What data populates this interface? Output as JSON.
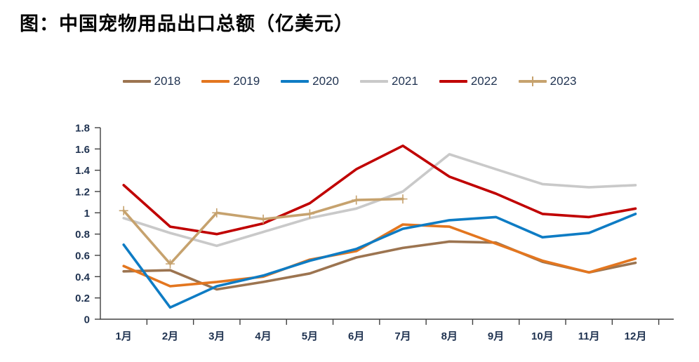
{
  "title": "图：中国宠物用品出口总额（亿美元）",
  "chart_data": {
    "type": "line",
    "title": "中国宠物用品出口总额（亿美元）",
    "xlabel": "",
    "ylabel": "",
    "categories": [
      "1月",
      "2月",
      "3月",
      "4月",
      "5月",
      "6月",
      "7月",
      "8月",
      "9月",
      "10月",
      "11月",
      "12月"
    ],
    "series": [
      {
        "name": "2018",
        "color": "#9C7450",
        "marker": "none",
        "values": [
          0.45,
          0.46,
          0.28,
          0.35,
          0.43,
          0.58,
          0.67,
          0.73,
          0.72,
          0.54,
          0.44,
          0.53
        ]
      },
      {
        "name": "2019",
        "color": "#E3761F",
        "marker": "none",
        "values": [
          0.5,
          0.31,
          0.35,
          0.4,
          0.56,
          0.64,
          0.89,
          0.87,
          0.71,
          0.55,
          0.44,
          0.57
        ]
      },
      {
        "name": "2020",
        "color": "#0E7CC4",
        "marker": "none",
        "values": [
          0.7,
          0.11,
          0.31,
          0.41,
          0.55,
          0.66,
          0.85,
          0.93,
          0.96,
          0.77,
          0.81,
          0.99
        ]
      },
      {
        "name": "2021",
        "color": "#C9C9C9",
        "marker": "none",
        "values": [
          0.95,
          0.81,
          0.69,
          0.82,
          0.95,
          1.04,
          1.2,
          1.55,
          1.41,
          1.27,
          1.24,
          1.26
        ]
      },
      {
        "name": "2022",
        "color": "#C00000",
        "marker": "none",
        "values": [
          1.26,
          0.87,
          0.8,
          0.9,
          1.09,
          1.41,
          1.63,
          1.34,
          1.18,
          0.99,
          0.96,
          1.04
        ]
      },
      {
        "name": "2023",
        "color": "#C6A26E",
        "marker": "plus",
        "values": [
          1.02,
          0.52,
          1.0,
          0.94,
          0.99,
          1.12,
          1.13,
          null,
          null,
          null,
          null,
          null
        ]
      }
    ],
    "ylim": [
      0,
      1.8
    ],
    "ytick_labels": [
      "0",
      "0.2",
      "0.4",
      "0.6",
      "0.8",
      "1",
      "1.2",
      "1.4",
      "1.6",
      "1.8"
    ],
    "grid": false,
    "legend_position": "top"
  }
}
